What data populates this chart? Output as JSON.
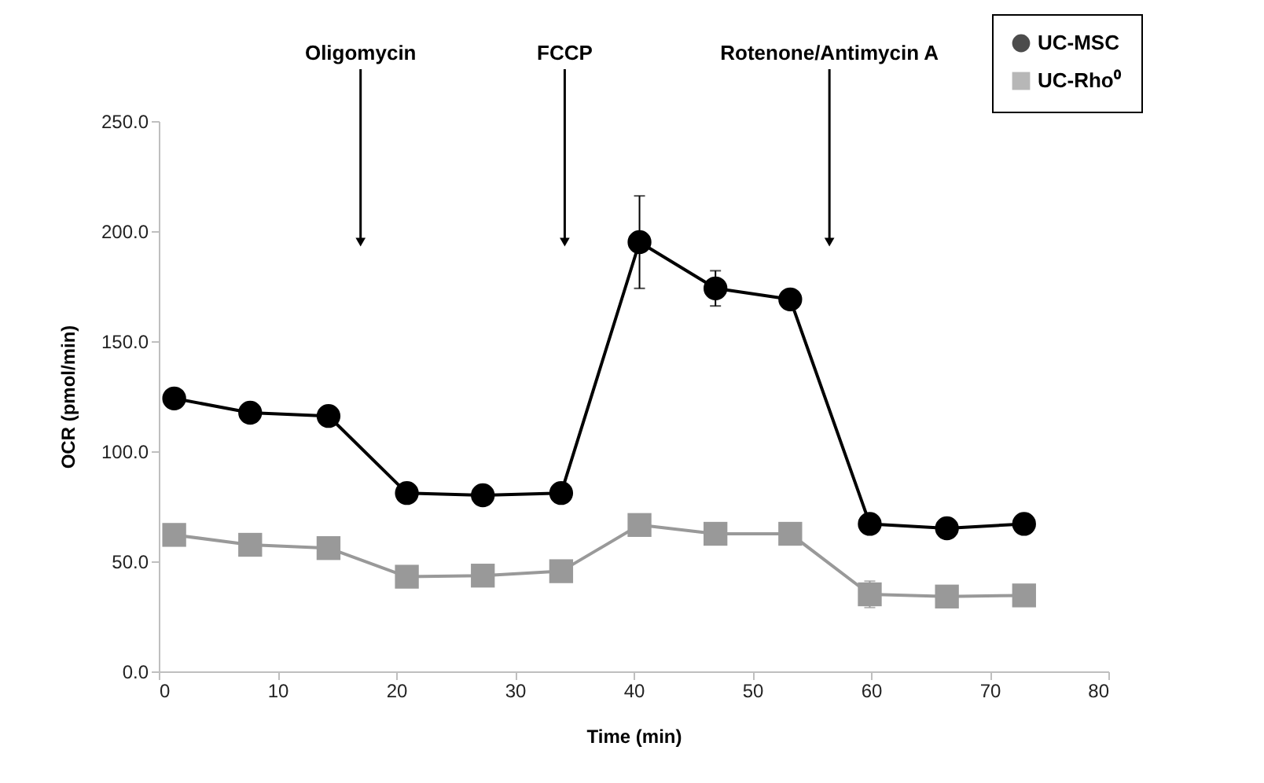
{
  "chart_data": {
    "type": "line",
    "xlabel": "Time (min)",
    "ylabel": "OCR (pmol/min)",
    "xlim": [
      0,
      80
    ],
    "xticks": [
      0,
      10,
      20,
      30,
      40,
      50,
      60,
      70,
      80
    ],
    "ylim": [
      0,
      250
    ],
    "yticks": [
      {
        "value": 0,
        "label": "0.0"
      },
      {
        "value": 50,
        "label": "50.0"
      },
      {
        "value": 100,
        "label": "100.0"
      },
      {
        "value": 150,
        "label": "150.0"
      },
      {
        "value": 200,
        "label": "200.0"
      },
      {
        "value": 250,
        "label": "250.0"
      }
    ],
    "x": [
      1.3,
      7.7,
      14.3,
      20.9,
      27.3,
      33.9,
      40.5,
      46.9,
      53.2,
      59.9,
      66.4,
      72.9
    ],
    "series": [
      {
        "name": "UC-MSC",
        "color": "#000000",
        "marker": "circle",
        "values": [
          124,
          117.5,
          116,
          81,
          80,
          81,
          195,
          174,
          169,
          67,
          65,
          67
        ],
        "errors": [
          null,
          null,
          null,
          null,
          null,
          null,
          21,
          8,
          null,
          null,
          null,
          null
        ]
      },
      {
        "name": "UC-Rho⁰",
        "color": "#999999",
        "marker": "square",
        "values": [
          62,
          57.5,
          56,
          43,
          43.5,
          45.5,
          66.5,
          62.5,
          62.5,
          35,
          34,
          34.5
        ],
        "errors": [
          null,
          null,
          null,
          null,
          null,
          null,
          null,
          null,
          null,
          6,
          null,
          null
        ]
      }
    ],
    "ref_lines": [
      {
        "axis": "x",
        "value": 17,
        "label": "Oligomycin"
      },
      {
        "axis": "x",
        "value": 34.2,
        "label": "FCCP"
      },
      {
        "axis": "x",
        "value": 56.5,
        "label": "Rotenone/Antimycin  A"
      }
    ],
    "legend": "top right",
    "grid": false,
    "line_style": "solid"
  }
}
